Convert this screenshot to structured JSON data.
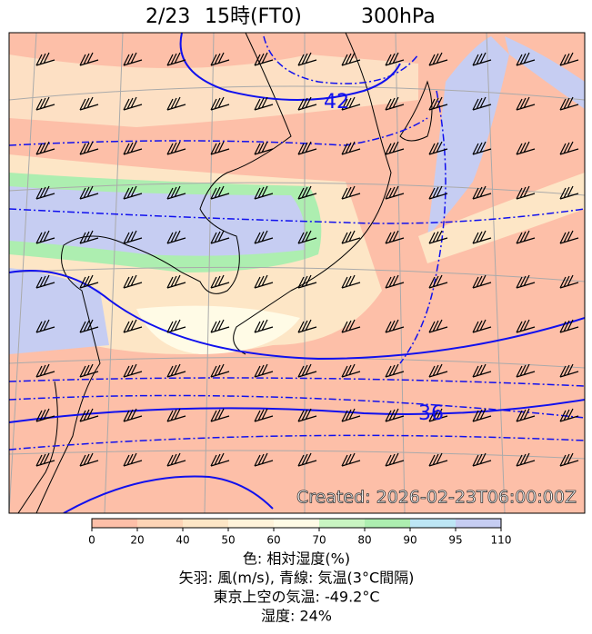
{
  "header": {
    "title_parts": [
      "2/23",
      "15時(FT0)",
      "300hPa"
    ]
  },
  "map": {
    "contour_labels": [
      "42",
      "36"
    ],
    "created": "Created: 2026-02-23T06:00:00Z"
  },
  "colorbar": {
    "ticks": [
      0,
      20,
      40,
      50,
      60,
      70,
      80,
      90,
      95,
      110
    ],
    "colors": [
      "#fdbfa8",
      "#fdd4b6",
      "#fde6c6",
      "#fff3da",
      "#fffbe6",
      "#c9f5c2",
      "#adeeb0",
      "#bde6f5",
      "#c6cdf2"
    ]
  },
  "captions": [
    "色: 相対湿度(%)",
    "矢羽: 風(m/s), 青線: 気温(3°C間隔)",
    "東京上空の気温: -49.2°C",
    "湿度: 24%"
  ]
}
